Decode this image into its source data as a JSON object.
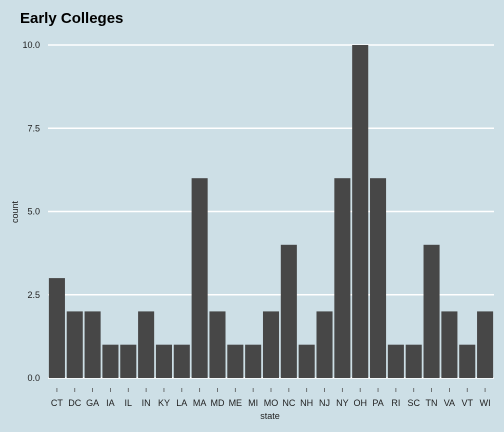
{
  "chart_data": {
    "type": "bar",
    "title": "Early Colleges",
    "xlabel": "state",
    "ylabel": "count",
    "categories": [
      "CT",
      "DC",
      "GA",
      "IA",
      "IL",
      "IN",
      "KY",
      "LA",
      "MA",
      "MD",
      "ME",
      "MI",
      "MO",
      "NC",
      "NH",
      "NJ",
      "NY",
      "OH",
      "PA",
      "RI",
      "SC",
      "TN",
      "VA",
      "VT",
      "WI"
    ],
    "values": [
      3,
      2,
      2,
      1,
      1,
      2,
      1,
      1,
      6,
      2,
      1,
      1,
      2,
      4,
      1,
      2,
      6,
      10,
      6,
      1,
      1,
      4,
      2,
      1,
      2
    ],
    "ylim": [
      0,
      10
    ],
    "yticks": [
      "0.0",
      "2.5",
      "5.0",
      "7.5",
      "10.0"
    ],
    "ytick_values": [
      0,
      2.5,
      5,
      7.5,
      10
    ],
    "grid": true,
    "bar_color": "#474747",
    "background_color": "#cddfe6",
    "grid_color": "#ffffff"
  }
}
